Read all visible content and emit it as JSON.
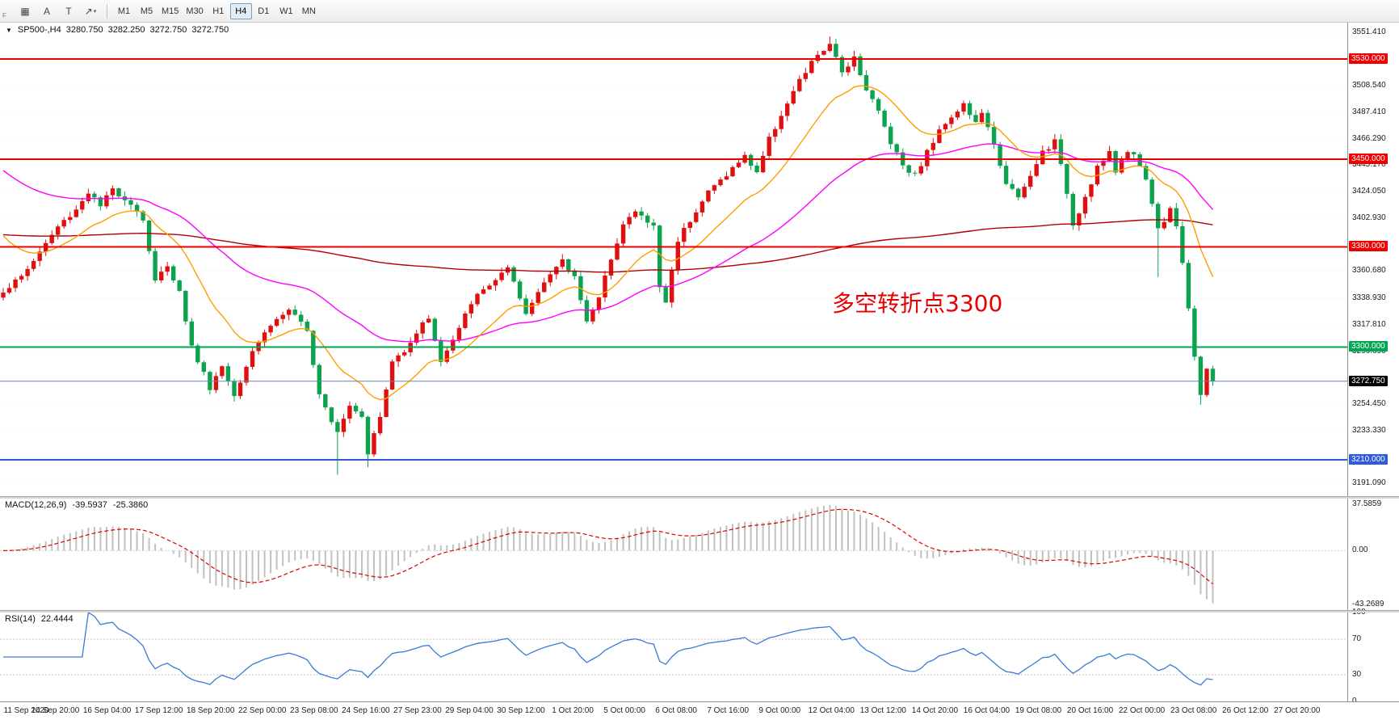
{
  "toolbar": {
    "fragment_label": "F",
    "buttons": [
      {
        "name": "chart-type",
        "glyph": "▦"
      },
      {
        "name": "annotate-a",
        "glyph": "A"
      },
      {
        "name": "text-tool",
        "glyph": "T"
      },
      {
        "name": "draw-arrow-tool",
        "glyph": "↗",
        "dropdown": "▾"
      }
    ],
    "timeframes": [
      "M1",
      "M5",
      "M15",
      "M30",
      "H1",
      "H4",
      "D1",
      "W1",
      "MN"
    ],
    "active_timeframe": "H4"
  },
  "chart_header": {
    "triangle": "▼",
    "symbol_tf": "SP500-,H4",
    "open": "3280.750",
    "high": "3282.250",
    "low": "3272.750",
    "close": "3272.750"
  },
  "annotation": {
    "text": "多空转折点3300",
    "color": "#e60000"
  },
  "price_axis": {
    "ticks": [
      "3551.410",
      "3508.540",
      "3487.410",
      "3466.290",
      "3445.170",
      "3424.050",
      "3402.930",
      "3360.680",
      "3338.930",
      "3317.810",
      "3296.690",
      "3254.450",
      "3233.330",
      "3191.090"
    ]
  },
  "hlines": [
    {
      "label": "3530.000",
      "price": 3530,
      "color": "#ee0000",
      "width": 2
    },
    {
      "label": "3450.000",
      "price": 3450,
      "color": "#ee0000",
      "width": 2
    },
    {
      "label": "3380.000",
      "price": 3380,
      "color": "#ee0000",
      "width": 2
    },
    {
      "label": "3300.000",
      "price": 3300,
      "color": "#00a651",
      "width": 2
    },
    {
      "label": "3210.000",
      "price": 3210,
      "color": "#2e5bd8",
      "width": 2
    }
  ],
  "current_price": {
    "label": "3272.750",
    "value": 3272.75,
    "line_color": "#6b87a8",
    "label_bg": "#000000"
  },
  "time_axis": {
    "labels": [
      "11 Sep 2020",
      "14 Sep 20:00",
      "16 Sep 04:00",
      "17 Sep 12:00",
      "18 Sep 20:00",
      "22 Sep 00:00",
      "23 Sep 08:00",
      "24 Sep 16:00",
      "27 Sep 23:00",
      "29 Sep 04:00",
      "30 Sep 12:00",
      "1 Oct 20:00",
      "5 Oct 00:00",
      "6 Oct 08:00",
      "7 Oct 16:00",
      "9 Oct 00:00",
      "12 Oct 04:00",
      "13 Oct 12:00",
      "14 Oct 20:00",
      "16 Oct 04:00",
      "19 Oct 08:00",
      "20 Oct 16:00",
      "22 Oct 00:00",
      "23 Oct 08:00",
      "26 Oct 12:00",
      "27 Oct 20:00"
    ]
  },
  "chart_data": {
    "type": "candlestick",
    "symbol": "SP500-",
    "timeframe": "H4",
    "bar_count": 200,
    "up_color": "#e01010",
    "down_color": "#0ca24e",
    "price_range": [
      3181,
      3559
    ],
    "price_keyframes": [
      [
        0,
        3345
      ],
      [
        3,
        3356
      ],
      [
        6,
        3376
      ],
      [
        9,
        3396
      ],
      [
        12,
        3410
      ],
      [
        14,
        3424
      ],
      [
        16,
        3412
      ],
      [
        18,
        3426
      ],
      [
        21,
        3415
      ],
      [
        23,
        3402
      ],
      [
        25,
        3352
      ],
      [
        27,
        3366
      ],
      [
        29,
        3344
      ],
      [
        31,
        3300
      ],
      [
        34,
        3268
      ],
      [
        36,
        3285
      ],
      [
        38,
        3262
      ],
      [
        41,
        3298
      ],
      [
        44,
        3318
      ],
      [
        47,
        3330
      ],
      [
        50,
        3312
      ],
      [
        52,
        3264
      ],
      [
        54,
        3242
      ],
      [
        55,
        3234
      ],
      [
        57,
        3254
      ],
      [
        59,
        3246
      ],
      [
        60,
        3216
      ],
      [
        62,
        3244
      ],
      [
        64,
        3288
      ],
      [
        66,
        3298
      ],
      [
        68,
        3312
      ],
      [
        70,
        3324
      ],
      [
        72,
        3288
      ],
      [
        75,
        3314
      ],
      [
        77,
        3336
      ],
      [
        80,
        3350
      ],
      [
        83,
        3362
      ],
      [
        86,
        3326
      ],
      [
        89,
        3354
      ],
      [
        92,
        3368
      ],
      [
        94,
        3356
      ],
      [
        96,
        3322
      ],
      [
        98,
        3338
      ],
      [
        100,
        3372
      ],
      [
        102,
        3398
      ],
      [
        104,
        3408
      ],
      [
        107,
        3396
      ],
      [
        108,
        3348
      ],
      [
        109,
        3336
      ],
      [
        111,
        3386
      ],
      [
        113,
        3402
      ],
      [
        116,
        3424
      ],
      [
        119,
        3438
      ],
      [
        122,
        3452
      ],
      [
        124,
        3440
      ],
      [
        126,
        3466
      ],
      [
        128,
        3486
      ],
      [
        131,
        3512
      ],
      [
        134,
        3534
      ],
      [
        136,
        3540
      ],
      [
        138,
        3520
      ],
      [
        140,
        3532
      ],
      [
        142,
        3506
      ],
      [
        144,
        3488
      ],
      [
        146,
        3464
      ],
      [
        148,
        3446
      ],
      [
        150,
        3437
      ],
      [
        152,
        3456
      ],
      [
        155,
        3480
      ],
      [
        158,
        3494
      ],
      [
        160,
        3478
      ],
      [
        161,
        3488
      ],
      [
        163,
        3460
      ],
      [
        165,
        3432
      ],
      [
        167,
        3418
      ],
      [
        169,
        3436
      ],
      [
        171,
        3456
      ],
      [
        173,
        3464
      ],
      [
        175,
        3424
      ],
      [
        176,
        3398
      ],
      [
        178,
        3420
      ],
      [
        180,
        3444
      ],
      [
        182,
        3454
      ],
      [
        183,
        3440
      ],
      [
        185,
        3458
      ],
      [
        187,
        3446
      ],
      [
        188,
        3434
      ],
      [
        189,
        3415
      ],
      [
        190,
        3394
      ],
      [
        191,
        3402
      ],
      [
        192,
        3412
      ],
      [
        193,
        3398
      ],
      [
        194,
        3368
      ],
      [
        195,
        3330
      ],
      [
        196,
        3290
      ],
      [
        197,
        3262
      ],
      [
        198,
        3284
      ],
      [
        199,
        3272.75
      ]
    ],
    "wick_overrides": {
      "55": {
        "low": 3198
      },
      "60": {
        "low": 3204
      },
      "136": {
        "high": 3548
      },
      "190": {
        "low": 3356
      },
      "197": {
        "low": 3254
      }
    },
    "moving_averages": [
      {
        "name": "long",
        "period": 300,
        "seed": 3390,
        "color": "#b30000"
      },
      {
        "name": "medium",
        "period": 50,
        "seed": 3445,
        "color": "#ff00ff"
      },
      {
        "name": "fast",
        "period": 16,
        "seed": 3395,
        "color": "#ff9d00"
      }
    ]
  },
  "macd": {
    "title": "MACD(12,26,9)",
    "main_value": "-39.5937",
    "signal_value": "-25.3860",
    "fast": 12,
    "slow": 26,
    "signal": 9,
    "axis_ticks": [
      "37.5859",
      "0.00",
      "-43.2689"
    ],
    "histogram_color": "#c0c0c0",
    "signal_color": "#dd0000"
  },
  "rsi": {
    "title": "RSI(14)",
    "value": "22.4444",
    "period": 14,
    "levels": [
      70,
      30
    ],
    "axis_ticks": [
      "100",
      "70",
      "30",
      "0"
    ],
    "line_color": "#3a7bd5"
  }
}
